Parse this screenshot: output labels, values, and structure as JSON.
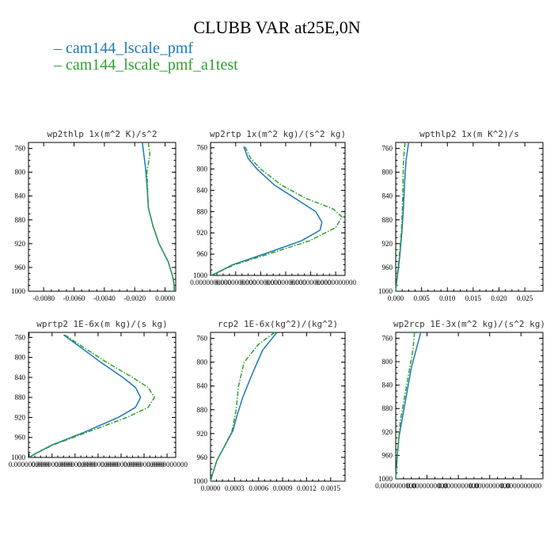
{
  "figure": {
    "title": "CLUBB VAR at25E,0N",
    "legend": [
      {
        "label": "cam144_lscale_pmf",
        "color": "#1f77b4",
        "dash": "solid"
      },
      {
        "label": "cam144_lscale_pmf_a1test",
        "color": "#2ca02c",
        "dash": "dashdot"
      }
    ]
  },
  "chart_data": [
    {
      "type": "line",
      "title": "wp2thlp   1x(m^2 K)/s^2",
      "xlim": [
        -0.009,
        0.0007
      ],
      "ylim": [
        1000,
        750
      ],
      "y_inverted": true,
      "xticks": [
        -0.008,
        -0.006,
        -0.004,
        -0.002,
        0.0
      ],
      "xtick_labels": [
        "-0.0080",
        "-0.0060",
        "-0.0040",
        "-0.0020",
        "0.0000"
      ],
      "yticks": [
        760,
        800,
        840,
        880,
        920,
        960,
        1000
      ],
      "series": [
        {
          "name": "cam144_lscale_pmf",
          "points": [
            [
              -0.0015,
              750
            ],
            [
              -0.0013,
              790
            ],
            [
              -0.0012,
              820
            ],
            [
              -0.0011,
              860
            ],
            [
              -0.0008,
              890
            ],
            [
              -0.0004,
              920
            ],
            [
              0.0002,
              950
            ],
            [
              0.0005,
              975
            ],
            [
              0.0006,
              990
            ],
            [
              0.0006,
              1000
            ]
          ]
        },
        {
          "name": "cam144_lscale_pmf_a1test",
          "points": [
            [
              -0.0011,
              750
            ],
            [
              -0.001,
              770
            ],
            [
              -0.0012,
              800
            ],
            [
              -0.0011,
              860
            ],
            [
              -0.0008,
              890
            ],
            [
              -0.0004,
              920
            ],
            [
              0.0002,
              950
            ],
            [
              0.0005,
              975
            ],
            [
              0.0006,
              990
            ],
            [
              0.0006,
              1000
            ]
          ]
        }
      ]
    },
    {
      "type": "line",
      "title": "wp2rtp   1x(m^2 kg)/(s^2 kg)",
      "xlim": [
        -2e-08,
        2.15e-05
      ],
      "ylim": [
        1000,
        750
      ],
      "y_inverted": true,
      "xticks": [
        0.0,
        4e-06,
        8e-06,
        1.2e-05,
        1.6e-05,
        2e-05
      ],
      "xtick_labels": [
        "0.0000000000",
        "0.0000000000",
        "0.0000000000",
        "0.0000000000",
        "0.0000000000",
        "0.0000000000"
      ],
      "yticks": [
        760,
        800,
        840,
        880,
        920,
        960,
        1000
      ],
      "series": [
        {
          "name": "cam144_lscale_pmf",
          "points": [
            [
              5.3e-06,
              758
            ],
            [
              6e-06,
              780
            ],
            [
              7.4e-06,
              800
            ],
            [
              1.02e-05,
              830
            ],
            [
              1.35e-05,
              855
            ],
            [
              1.68e-05,
              880
            ],
            [
              1.78e-05,
              900
            ],
            [
              1.75e-05,
              915
            ],
            [
              1.45e-05,
              935
            ],
            [
              8.5e-06,
              960
            ],
            [
              3.5e-06,
              980
            ],
            [
              1e-06,
              995
            ],
            [
              1e-07,
              1000
            ]
          ]
        },
        {
          "name": "cam144_lscale_pmf_a1test",
          "points": [
            [
              5.5e-06,
              758
            ],
            [
              6.4e-06,
              780
            ],
            [
              8e-06,
              800
            ],
            [
              1.13e-05,
              830
            ],
            [
              1.52e-05,
              855
            ],
            [
              1.96e-05,
              875
            ],
            [
              2.1e-05,
              890
            ],
            [
              2e-05,
              910
            ],
            [
              1.58e-05,
              935
            ],
            [
              9.2e-06,
              960
            ],
            [
              3.8e-06,
              980
            ],
            [
              1e-06,
              995
            ],
            [
              1e-07,
              1000
            ]
          ]
        }
      ]
    },
    {
      "type": "line",
      "title": "wpthlp2   1x(m K^2)/s",
      "xlim": [
        0.0,
        0.0285
      ],
      "ylim": [
        1000,
        750
      ],
      "y_inverted": true,
      "xticks": [
        0.0,
        0.005,
        0.01,
        0.015,
        0.02,
        0.025
      ],
      "xtick_labels": [
        "0.000",
        "0.005",
        "0.010",
        "0.015",
        "0.020",
        "0.025"
      ],
      "yticks": [
        760,
        800,
        840,
        880,
        920,
        960,
        1000
      ],
      "series": [
        {
          "name": "cam144_lscale_pmf",
          "points": [
            [
              0.0025,
              750
            ],
            [
              0.002,
              780
            ],
            [
              0.0017,
              820
            ],
            [
              0.0015,
              860
            ],
            [
              0.0012,
              900
            ],
            [
              0.0008,
              940
            ],
            [
              0.0004,
              970
            ],
            [
              0.0001,
              990
            ],
            [
              0.0,
              1000
            ]
          ]
        },
        {
          "name": "cam144_lscale_pmf_a1test",
          "points": [
            [
              0.0018,
              750
            ],
            [
              0.0015,
              780
            ],
            [
              0.0014,
              820
            ],
            [
              0.0013,
              860
            ],
            [
              0.0011,
              900
            ],
            [
              0.0007,
              940
            ],
            [
              0.0003,
              970
            ],
            [
              0.0001,
              990
            ],
            [
              0.0,
              1000
            ]
          ]
        }
      ]
    },
    {
      "type": "line",
      "title": "wprtp2   1E-6x(m kg)/(s kg)",
      "xlim": [
        -1e-07,
        2.55e-05
      ],
      "ylim": [
        1000,
        750
      ],
      "y_inverted": true,
      "xticks": [
        0.0,
        4e-06,
        8e-06,
        1.2e-05,
        1.6e-05,
        2e-05,
        2.4e-05
      ],
      "xtick_labels": [
        "0.0000000000",
        "0.0000000000",
        "0.0000000000",
        "0.0000000000",
        "0.0000000000",
        "0.0000000000",
        "0.0000000000"
      ],
      "yticks": [
        760,
        800,
        840,
        880,
        920,
        960,
        1000
      ],
      "series": [
        {
          "name": "cam144_lscale_pmf",
          "points": [
            [
              6e-06,
              755
            ],
            [
              9e-06,
              780
            ],
            [
              1.25e-05,
              810
            ],
            [
              1.63e-05,
              840
            ],
            [
              1.85e-05,
              860
            ],
            [
              1.94e-05,
              880
            ],
            [
              1.85e-05,
              900
            ],
            [
              1.55e-05,
              920
            ],
            [
              9.5e-06,
              950
            ],
            [
              4e-06,
              975
            ],
            [
              1e-06,
              993
            ],
            [
              0.0,
              1000
            ]
          ]
        },
        {
          "name": "cam144_lscale_pmf_a1test",
          "points": [
            [
              6.2e-06,
              755
            ],
            [
              9.5e-06,
              780
            ],
            [
              1.35e-05,
              810
            ],
            [
              1.8e-05,
              840
            ],
            [
              2.07e-05,
              860
            ],
            [
              2.18e-05,
              880
            ],
            [
              2.07e-05,
              900
            ],
            [
              1.7e-05,
              920
            ],
            [
              1e-05,
              950
            ],
            [
              4.2e-06,
              975
            ],
            [
              1e-06,
              993
            ],
            [
              0.0,
              1000
            ]
          ]
        }
      ]
    },
    {
      "type": "line",
      "title": "rcp2   1E-6x(kg^2)/(kg^2)",
      "xlim": [
        0.0,
        0.00168
      ],
      "ylim": [
        1000,
        750
      ],
      "y_inverted": true,
      "xticks": [
        0.0,
        0.0003,
        0.0006,
        0.0009,
        0.0012,
        0.0015
      ],
      "xtick_labels": [
        "0.0000",
        "0.0003",
        "0.0006",
        "0.0009",
        "0.0012",
        "0.0015"
      ],
      "yticks": [
        760,
        800,
        840,
        880,
        920,
        960,
        1000
      ],
      "series": [
        {
          "name": "cam144_lscale_pmf",
          "points": [
            [
              0.00083,
              750
            ],
            [
              0.00065,
              780
            ],
            [
              0.00052,
              820
            ],
            [
              0.0004,
              860
            ],
            [
              0.00033,
              890
            ],
            [
              0.00028,
              915
            ],
            [
              0.00018,
              940
            ],
            [
              8e-05,
              965
            ],
            [
              2e-05,
              990
            ],
            [
              0.0,
              1000
            ]
          ]
        },
        {
          "name": "cam144_lscale_pmf_a1test",
          "points": [
            [
              0.0008,
              750
            ],
            [
              0.0006,
              770
            ],
            [
              0.00042,
              800
            ],
            [
              0.00035,
              840
            ],
            [
              0.00032,
              880
            ],
            [
              0.00027,
              915
            ],
            [
              0.00018,
              940
            ],
            [
              8e-05,
              965
            ],
            [
              2e-05,
              990
            ],
            [
              0.0,
              1000
            ]
          ]
        }
      ]
    },
    {
      "type": "line",
      "title": "wp2rcp   1E-3x(m^2 kg)/(s^2 kg)",
      "xlim": [
        0.0,
        9.4e-06
      ],
      "ylim": [
        1000,
        750
      ],
      "y_inverted": true,
      "xticks": [
        0.0,
        2e-06,
        4e-06,
        6e-06,
        8e-06
      ],
      "xtick_labels": [
        "0.0000000000",
        "0.0000000000",
        "0.0000000000",
        "0.0000000000",
        "0.0000000000"
      ],
      "yticks": [
        760,
        800,
        840,
        880,
        920,
        960,
        1000
      ],
      "series": [
        {
          "name": "cam144_lscale_pmf",
          "points": [
            [
              1.6e-06,
              750
            ],
            [
              1.3e-06,
              780
            ],
            [
              1e-06,
              810
            ],
            [
              8e-07,
              840
            ],
            [
              6e-07,
              870
            ],
            [
              4e-07,
              900
            ],
            [
              2e-07,
              930
            ],
            [
              1e-07,
              960
            ],
            [
              0.0,
              1000
            ]
          ]
        },
        {
          "name": "cam144_lscale_pmf_a1test",
          "points": [
            [
              1.2e-06,
              750
            ],
            [
              1.1e-06,
              780
            ],
            [
              9e-07,
              810
            ],
            [
              7e-07,
              840
            ],
            [
              5e-07,
              870
            ],
            [
              3e-07,
              900
            ],
            [
              2e-07,
              930
            ],
            [
              1e-07,
              960
            ],
            [
              0.0,
              1000
            ]
          ]
        }
      ]
    }
  ]
}
